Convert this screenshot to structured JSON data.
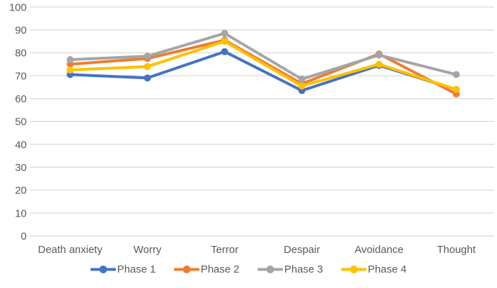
{
  "chart_data": {
    "type": "line",
    "title": "",
    "categories": [
      "Death anxiety",
      "Worry",
      "Terror",
      "Despair",
      "Avoidance",
      "Thought"
    ],
    "series": [
      {
        "name": "Phase 1",
        "color": "#4472C4",
        "values": [
          70.5,
          69,
          80.5,
          63.5,
          74.5,
          64
        ]
      },
      {
        "name": "Phase 2",
        "color": "#ED7D31",
        "values": [
          75,
          77.5,
          85.5,
          66.5,
          79.5,
          62
        ]
      },
      {
        "name": "Phase 3",
        "color": "#A5A5A5",
        "values": [
          77,
          78.5,
          88.5,
          68.5,
          79,
          70.5
        ]
      },
      {
        "name": "Phase 4",
        "color": "#FFC000",
        "values": [
          72.5,
          74,
          85,
          65.5,
          75,
          64
        ]
      }
    ],
    "ylim": [
      0,
      100
    ],
    "ytick_step": 10,
    "ytick_labels": [
      "0",
      "10",
      "20",
      "30",
      "40",
      "50",
      "60",
      "70",
      "80",
      "90",
      "100"
    ],
    "grid": true,
    "legend_position": "bottom",
    "xlabel": "",
    "ylabel": "",
    "axis_text_color": "#595959",
    "gridline_color": "#D9D9D9",
    "background": "#FFFFFF",
    "marker": "circle",
    "line_width": 4,
    "marker_radius": 5
  }
}
